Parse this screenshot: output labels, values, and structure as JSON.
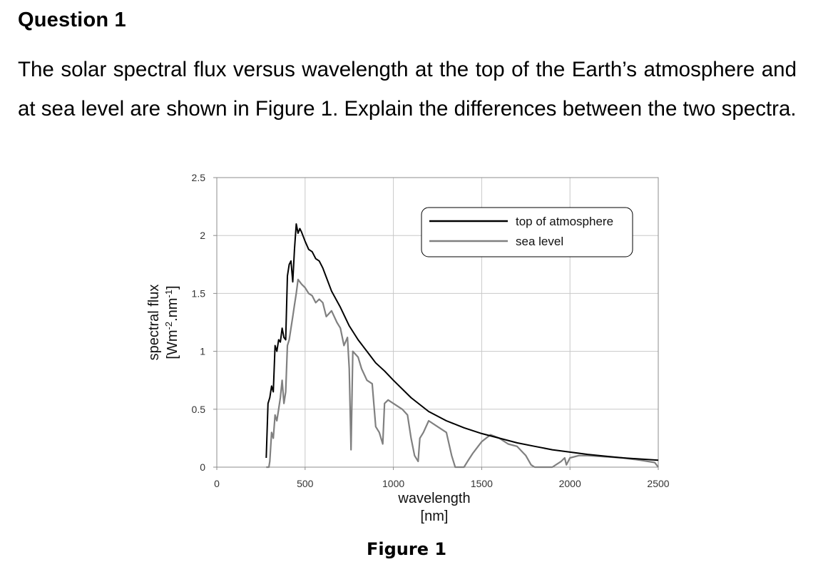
{
  "question": {
    "title": "Question 1",
    "text": "The solar spectral flux versus wavelength at the top of the Earth’s atmosphere and at sea level are shown in Figure 1. Explain the differences between the two spectra."
  },
  "figure": {
    "caption": "Figure 1"
  },
  "chart_data": {
    "type": "line",
    "title": "",
    "xlabel_lines": [
      "wavelength",
      "[nm]"
    ],
    "ylabel_lines": [
      "spectral flux",
      "[Wm-2.nm-1]"
    ],
    "xlim": [
      0,
      2500
    ],
    "ylim": [
      0,
      2.5
    ],
    "x_ticks": [
      0,
      500,
      1000,
      1500,
      2000,
      2500
    ],
    "y_ticks": [
      0,
      0.5,
      1,
      1.5,
      2,
      2.5
    ],
    "x_tick_labels": [
      "0",
      "500",
      "1000",
      "1500",
      "2000",
      "2500"
    ],
    "y_tick_labels": [
      "0",
      "0.5",
      "1",
      "1.5",
      "2",
      "2.5"
    ],
    "grid": true,
    "legend_position": "top-right",
    "series": [
      {
        "name": "top of atmosphere",
        "color": "#000000",
        "x": [
          280,
          290,
          300,
          310,
          320,
          330,
          340,
          350,
          360,
          370,
          380,
          390,
          400,
          410,
          420,
          430,
          440,
          450,
          460,
          470,
          480,
          500,
          520,
          540,
          560,
          580,
          600,
          650,
          700,
          750,
          800,
          850,
          900,
          950,
          1000,
          1100,
          1200,
          1300,
          1400,
          1500,
          1600,
          1700,
          1800,
          1900,
          2000,
          2100,
          2200,
          2300,
          2400,
          2500
        ],
        "y": [
          0.08,
          0.55,
          0.6,
          0.7,
          0.65,
          1.05,
          1.0,
          1.1,
          1.08,
          1.2,
          1.12,
          1.1,
          1.65,
          1.75,
          1.78,
          1.6,
          1.88,
          2.1,
          2.02,
          2.06,
          2.03,
          1.95,
          1.88,
          1.86,
          1.8,
          1.78,
          1.72,
          1.52,
          1.38,
          1.22,
          1.1,
          1.0,
          0.9,
          0.83,
          0.75,
          0.6,
          0.48,
          0.4,
          0.34,
          0.29,
          0.25,
          0.21,
          0.18,
          0.15,
          0.13,
          0.11,
          0.095,
          0.08,
          0.07,
          0.06
        ]
      },
      {
        "name": "sea level",
        "color": "#808080",
        "x": [
          280,
          295,
          300,
          310,
          320,
          330,
          340,
          350,
          360,
          370,
          380,
          390,
          400,
          410,
          420,
          430,
          440,
          450,
          460,
          470,
          480,
          500,
          520,
          540,
          560,
          580,
          600,
          620,
          650,
          680,
          700,
          720,
          740,
          750,
          760,
          765,
          770,
          800,
          820,
          850,
          880,
          900,
          920,
          940,
          950,
          970,
          1000,
          1050,
          1080,
          1100,
          1120,
          1140,
          1150,
          1170,
          1200,
          1250,
          1300,
          1330,
          1350,
          1380,
          1400,
          1420,
          1450,
          1480,
          1500,
          1550,
          1600,
          1650,
          1700,
          1750,
          1780,
          1800,
          1900,
          1950,
          1970,
          1980,
          2000,
          2050,
          2100,
          2200,
          2300,
          2400,
          2480,
          2500
        ],
        "y": [
          0.0,
          0.0,
          0.05,
          0.3,
          0.25,
          0.45,
          0.4,
          0.5,
          0.6,
          0.75,
          0.55,
          0.65,
          1.05,
          1.1,
          1.2,
          1.3,
          1.4,
          1.5,
          1.62,
          1.6,
          1.58,
          1.55,
          1.5,
          1.48,
          1.42,
          1.45,
          1.42,
          1.3,
          1.35,
          1.25,
          1.2,
          1.05,
          1.12,
          0.85,
          0.15,
          0.55,
          1.0,
          0.95,
          0.85,
          0.75,
          0.72,
          0.35,
          0.3,
          0.2,
          0.55,
          0.58,
          0.55,
          0.5,
          0.45,
          0.25,
          0.1,
          0.05,
          0.25,
          0.3,
          0.4,
          0.35,
          0.3,
          0.1,
          0.0,
          0.0,
          0.0,
          0.05,
          0.12,
          0.18,
          0.22,
          0.28,
          0.25,
          0.2,
          0.18,
          0.1,
          0.02,
          0.0,
          0.0,
          0.05,
          0.08,
          0.02,
          0.08,
          0.1,
          0.1,
          0.09,
          0.08,
          0.06,
          0.04,
          0.0
        ]
      }
    ]
  }
}
